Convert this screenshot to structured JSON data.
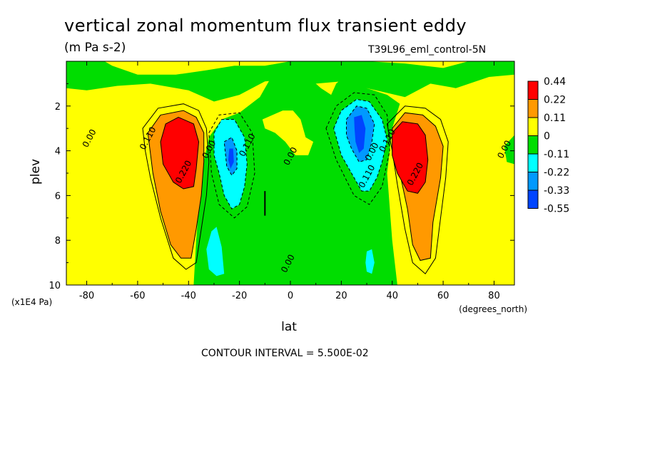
{
  "header": {
    "title": "vertical zonal momentum flux transient eddy",
    "units": "(m Pa s-2)",
    "run_id": "T39L96_eml_control-5N",
    "contour_interval": "CONTOUR INTERVAL = 5.500E-02"
  },
  "chart_data": {
    "type": "heatmap",
    "title": "vertical zonal momentum flux transient eddy",
    "subtitle": "(m Pa s-2)",
    "xlabel": "lat",
    "ylabel": "plev",
    "x_units": "(degrees_north)",
    "y_units": "(x1E4 Pa)",
    "xlim": [
      -88,
      88
    ],
    "ylim": [
      0,
      10
    ],
    "y_inverted": true,
    "x_ticks": [
      -80,
      -60,
      -40,
      -20,
      0,
      20,
      40,
      60,
      80
    ],
    "x_tick_labels": [
      "-80",
      "-60",
      "-40",
      "-20",
      "0",
      "20",
      "40",
      "60",
      "80"
    ],
    "y_ticks": [
      2,
      4,
      6,
      8,
      10
    ],
    "y_tick_labels": [
      "2",
      "4",
      "6",
      "8",
      "10"
    ],
    "colorbar": {
      "labels": [
        "0.44",
        "0.22",
        "0.11",
        "0",
        "-0.11",
        "-0.22",
        "-0.33",
        "-0.55"
      ],
      "colors": [
        "#ff0000",
        "#ff9900",
        "#ffff00",
        "#00dd00",
        "#00ffff",
        "#0099ff",
        "#0044ff"
      ]
    },
    "level_colors": {
      "l0": "#ffff00",
      "l1": "#ff9900",
      "l2": "#ff0000",
      "n1": "#00dd00",
      "n2": "#00ffff",
      "n3": "#0099ff",
      "n4": "#0044ff"
    },
    "features": [
      {
        "kind": "max",
        "lat": -44,
        "plev": 4.2,
        "value": 0.5
      },
      {
        "kind": "min",
        "lat": -23,
        "plev": 4.4,
        "value": -0.4
      },
      {
        "kind": "min",
        "lat": 27,
        "plev": 3.4,
        "value": -0.45
      },
      {
        "kind": "max",
        "lat": 47,
        "plev": 4.2,
        "value": 0.5
      }
    ],
    "contour_labels": [
      {
        "text": "0.00",
        "lat": -78,
        "plev": 3.5
      },
      {
        "text": "0.110",
        "lat": -55,
        "plev": 3.5
      },
      {
        "text": "0.220",
        "lat": -41,
        "plev": 5.0
      },
      {
        "text": "0.00",
        "lat": -31,
        "plev": 4.0
      },
      {
        "text": "0.110",
        "lat": -16,
        "plev": 3.8
      },
      {
        "text": "0.00",
        "lat": 1,
        "plev": 4.3
      },
      {
        "text": "0.00",
        "lat": 0,
        "plev": 9.1
      },
      {
        "text": "0.110",
        "lat": 31,
        "plev": 5.2
      },
      {
        "text": "0.00",
        "lat": 33,
        "plev": 4.1
      },
      {
        "text": "0.110",
        "lat": 39,
        "plev": 3.6
      },
      {
        "text": "0.220",
        "lat": 50,
        "plev": 5.1
      },
      {
        "text": "0.00",
        "lat": 85,
        "plev": 4.0
      }
    ]
  }
}
